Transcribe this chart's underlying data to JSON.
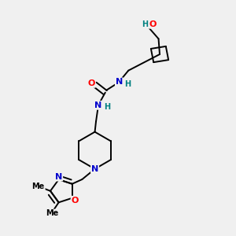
{
  "bg_color": "#f0f0f0",
  "atom_colors": {
    "C": "#000000",
    "N": "#0000cc",
    "O": "#ff0000",
    "H": "#008080"
  },
  "bond_color": "#000000",
  "bond_width": 1.4,
  "figsize": [
    3.0,
    3.0
  ],
  "dpi": 100
}
